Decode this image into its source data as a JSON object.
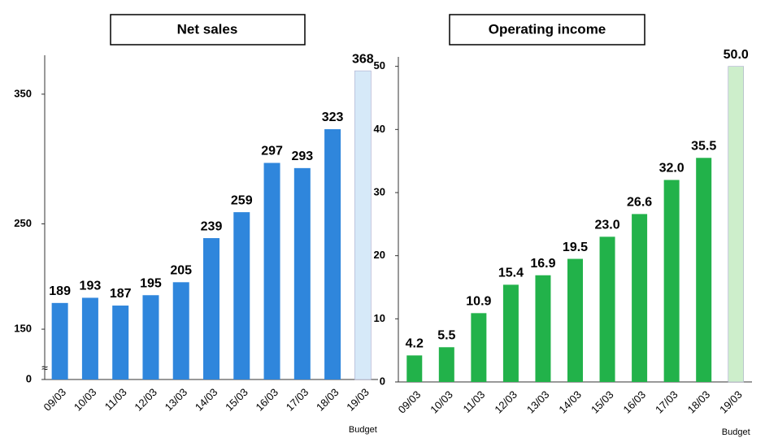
{
  "chart_data": [
    {
      "type": "bar",
      "title": "Net sales",
      "categories": [
        "09/03",
        "10/03",
        "11/03",
        "12/03",
        "13/03",
        "14/03",
        "15/03",
        "16/03",
        "17/03",
        "18/03",
        "19/03"
      ],
      "category_notes": [
        null,
        null,
        null,
        null,
        null,
        null,
        null,
        null,
        null,
        null,
        "Budget"
      ],
      "values": [
        189,
        193,
        187,
        195,
        205,
        239,
        259,
        297,
        293,
        323,
        368
      ],
      "colors": [
        "#2f86dc",
        "#2f86dc",
        "#2f86dc",
        "#2f86dc",
        "#2f86dc",
        "#2f86dc",
        "#2f86dc",
        "#2f86dc",
        "#2f86dc",
        "#2f86dc",
        "#d6e9f8"
      ],
      "ylim": [
        130,
        380
      ],
      "yticks": [
        0,
        150,
        250,
        350
      ],
      "axis_break": true
    },
    {
      "type": "bar",
      "title": "Operating income",
      "categories": [
        "09/03",
        "10/03",
        "11/03",
        "12/03",
        "13/03",
        "14/03",
        "15/03",
        "16/03",
        "17/03",
        "18/03",
        "19/03"
      ],
      "category_notes": [
        null,
        null,
        null,
        null,
        null,
        null,
        null,
        null,
        null,
        null,
        "Budget"
      ],
      "values": [
        4.2,
        5.5,
        10.9,
        15.4,
        16.9,
        19.5,
        23.0,
        26.6,
        32.0,
        35.5,
        50.0
      ],
      "value_labels": [
        "4.2",
        "5.5",
        "10.9",
        "15.4",
        "16.9",
        "19.5",
        "23.0",
        "26.6",
        "32.0",
        "35.5",
        "50.0"
      ],
      "colors": [
        "#22b24a",
        "#22b24a",
        "#22b24a",
        "#22b24a",
        "#22b24a",
        "#22b24a",
        "#22b24a",
        "#22b24a",
        "#22b24a",
        "#22b24a",
        "#cdeecb"
      ],
      "ylim": [
        0,
        51.5
      ],
      "yticks": [
        0,
        10,
        20,
        30,
        40,
        50
      ],
      "axis_break": false
    }
  ]
}
